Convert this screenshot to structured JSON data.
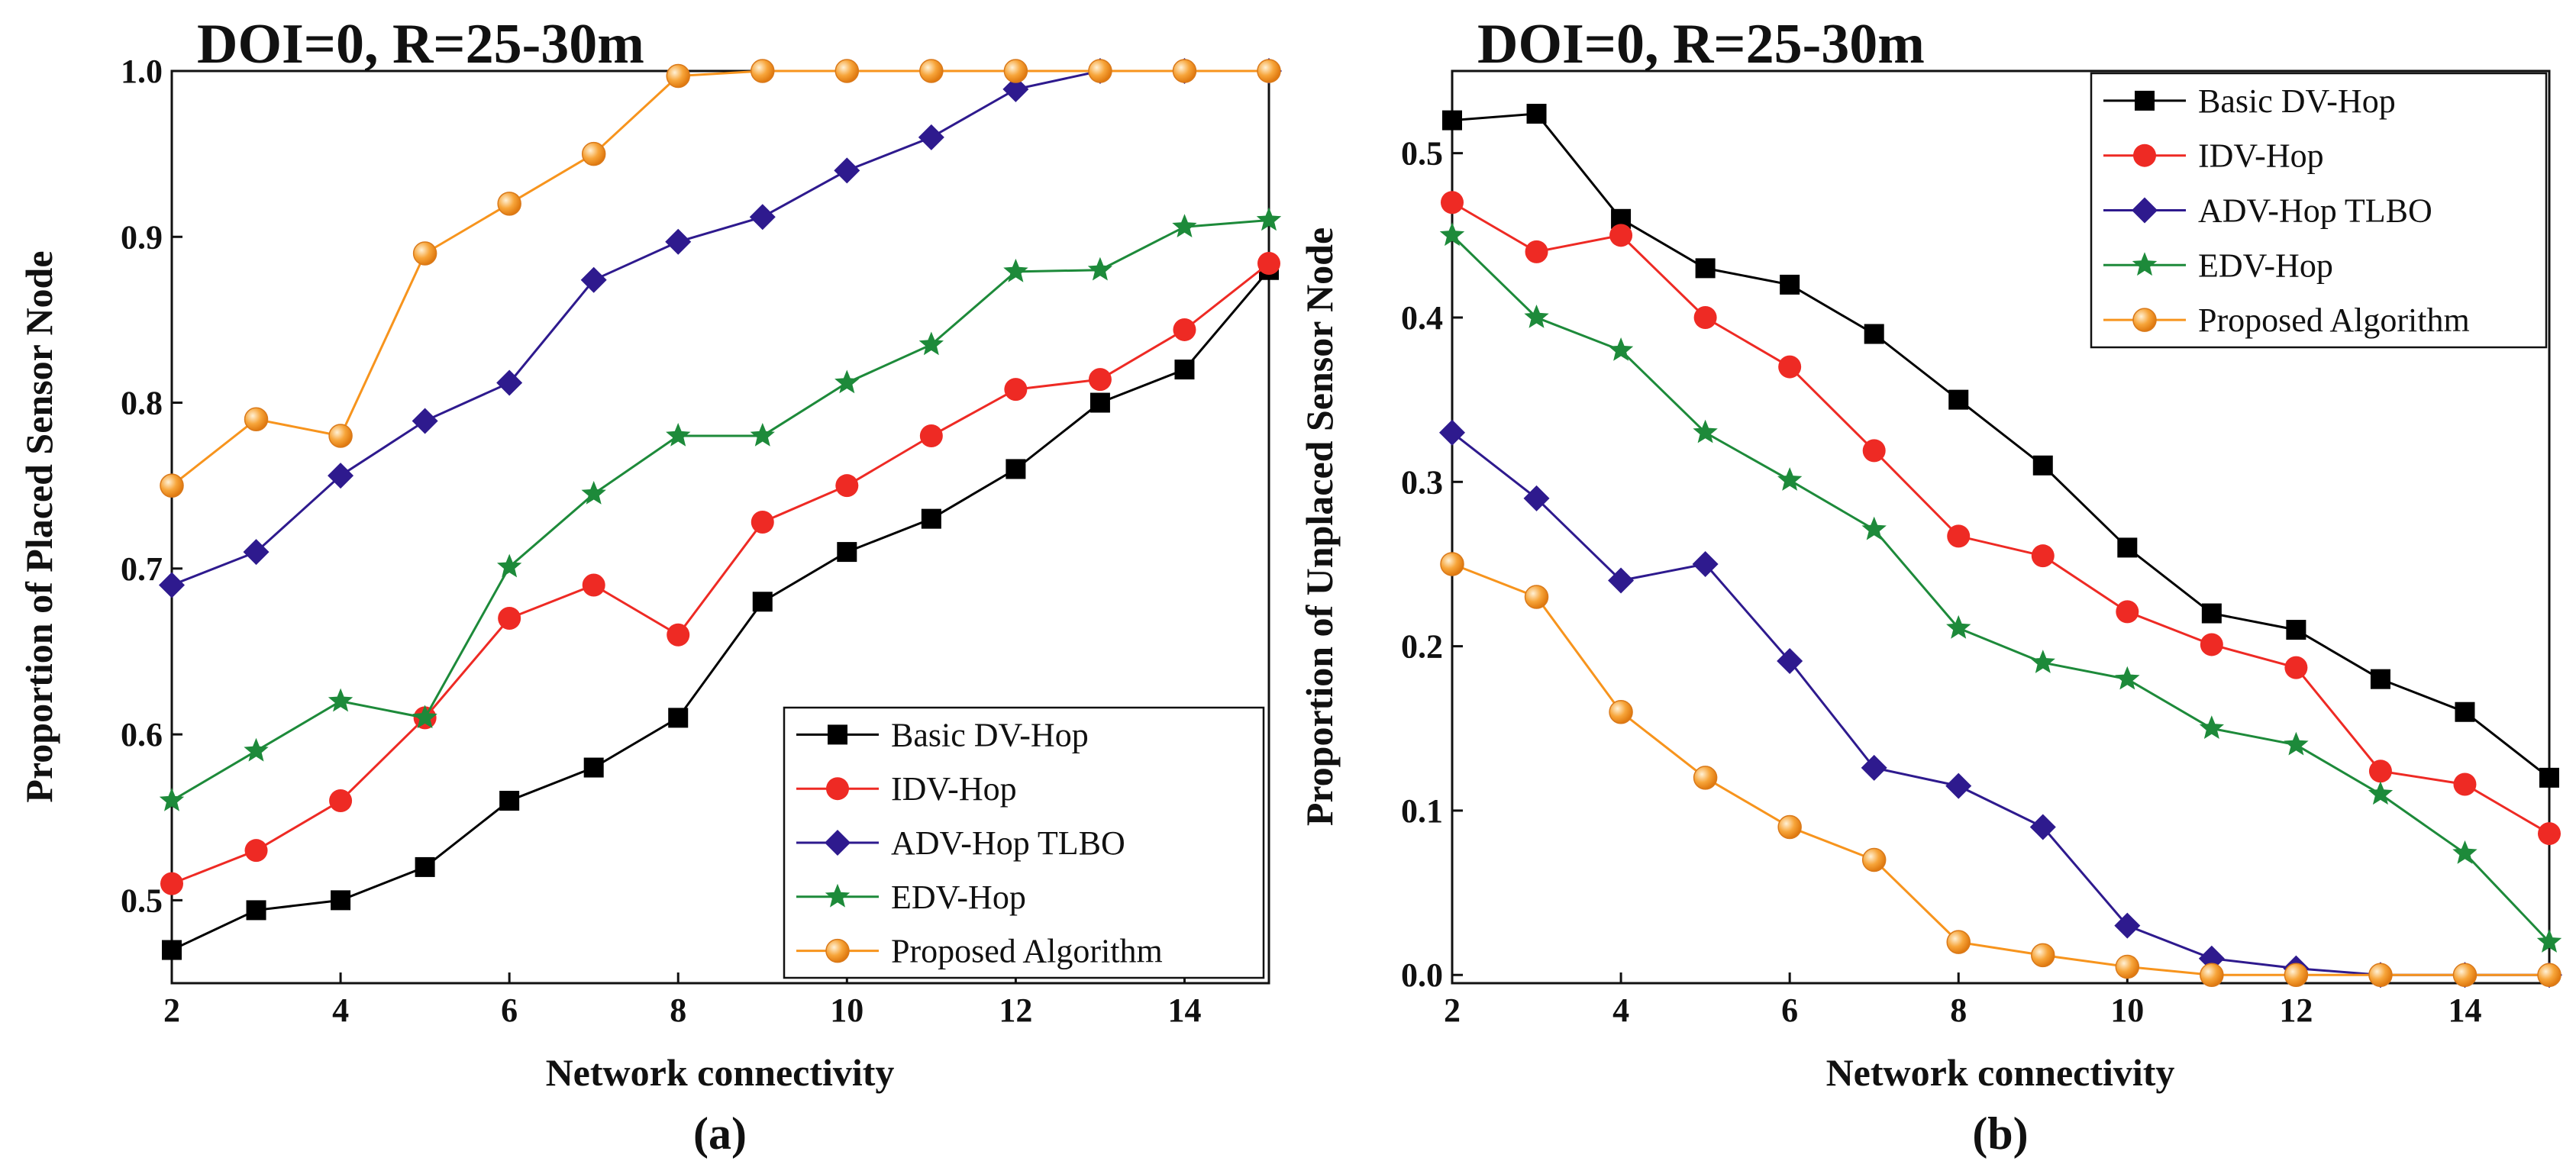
{
  "colors": {
    "Basic DV-Hop": "#000000",
    "IDV-Hop": "#ee2a24",
    "ADV-Hop TLBO": "#2e1a8e",
    "EDV-Hop": "#1d8a3a",
    "Proposed Algorithm": "#f7941d"
  },
  "markers": {
    "Basic DV-Hop": "square",
    "IDV-Hop": "circle",
    "ADV-Hop TLBO": "diamond",
    "EDV-Hop": "star",
    "Proposed Algorithm": "ball"
  },
  "chart_data": [
    {
      "type": "line",
      "panel_label": "(a)",
      "title": "DOI=0, R=25-30m",
      "xlabel": "Network connectivity",
      "ylabel": "Proportion of Placed Sensor Node",
      "xlim": [
        2,
        15
      ],
      "ylim": [
        0.45,
        1.0
      ],
      "xticks": [
        "2",
        "4",
        "6",
        "8",
        "10",
        "12",
        "14"
      ],
      "yticks": [
        "0.5",
        "0.6",
        "0.7",
        "0.8",
        "0.9",
        "1.0"
      ],
      "legend_position": "bottom-right",
      "x": [
        2,
        3,
        4,
        5,
        6,
        7,
        8,
        9,
        10,
        11,
        12,
        13,
        14,
        15
      ],
      "series": [
        {
          "name": "Basic DV-Hop",
          "values": [
            0.47,
            0.494,
            0.5,
            0.52,
            0.56,
            0.58,
            0.61,
            0.68,
            0.71,
            0.73,
            0.76,
            0.8,
            0.82,
            0.88
          ]
        },
        {
          "name": "IDV-Hop",
          "values": [
            0.51,
            0.53,
            0.56,
            0.61,
            0.67,
            0.69,
            0.66,
            0.728,
            0.75,
            0.78,
            0.808,
            0.814,
            0.844,
            0.884
          ]
        },
        {
          "name": "ADV-Hop TLBO",
          "values": [
            0.69,
            0.71,
            0.756,
            0.789,
            0.812,
            0.874,
            0.897,
            0.912,
            0.94,
            0.96,
            0.989,
            1.0,
            1.0,
            1.0
          ]
        },
        {
          "name": "EDV-Hop",
          "values": [
            0.56,
            0.59,
            0.62,
            0.61,
            0.701,
            0.745,
            0.78,
            0.78,
            0.812,
            0.835,
            0.879,
            0.88,
            0.906,
            0.91
          ]
        },
        {
          "name": "Proposed Algorithm",
          "values": [
            0.75,
            0.79,
            0.78,
            0.89,
            0.92,
            0.95,
            0.997,
            1.0,
            1.0,
            1.0,
            1.0,
            1.0,
            1.0,
            1.0
          ]
        }
      ]
    },
    {
      "type": "line",
      "panel_label": "(b)",
      "title": "DOI=0, R=25-30m",
      "xlabel": "Network connectivity",
      "ylabel": "Proportion of Unplaced Sensor Node",
      "xlim": [
        2,
        15
      ],
      "ylim": [
        -0.005,
        0.55
      ],
      "xticks": [
        "2",
        "4",
        "6",
        "8",
        "10",
        "12",
        "14"
      ],
      "yticks": [
        "0.0",
        "0.1",
        "0.2",
        "0.3",
        "0.4",
        "0.5"
      ],
      "legend_position": "top-right",
      "x": [
        2,
        3,
        4,
        5,
        6,
        7,
        8,
        9,
        10,
        11,
        12,
        13,
        14,
        15
      ],
      "series": [
        {
          "name": "Basic DV-Hop",
          "values": [
            0.52,
            0.524,
            0.46,
            0.43,
            0.42,
            0.39,
            0.35,
            0.31,
            0.26,
            0.22,
            0.21,
            0.18,
            0.16,
            0.12
          ]
        },
        {
          "name": "IDV-Hop",
          "values": [
            0.47,
            0.44,
            0.45,
            0.4,
            0.37,
            0.319,
            0.267,
            0.255,
            0.221,
            0.201,
            0.187,
            0.124,
            0.116,
            0.086
          ]
        },
        {
          "name": "ADV-Hop TLBO",
          "values": [
            0.33,
            0.29,
            0.24,
            0.25,
            0.191,
            0.126,
            0.115,
            0.09,
            0.03,
            0.01,
            0.004,
            0.0,
            0.0,
            0.0
          ]
        },
        {
          "name": "EDV-Hop",
          "values": [
            0.45,
            0.4,
            0.38,
            0.33,
            0.301,
            0.271,
            0.211,
            0.19,
            0.18,
            0.15,
            0.14,
            0.11,
            0.074,
            0.02
          ]
        },
        {
          "name": "Proposed Algorithm",
          "values": [
            0.25,
            0.23,
            0.16,
            0.12,
            0.09,
            0.07,
            0.02,
            0.012,
            0.005,
            0.0,
            0.0,
            0.0,
            0.0,
            0.0
          ]
        }
      ]
    }
  ]
}
